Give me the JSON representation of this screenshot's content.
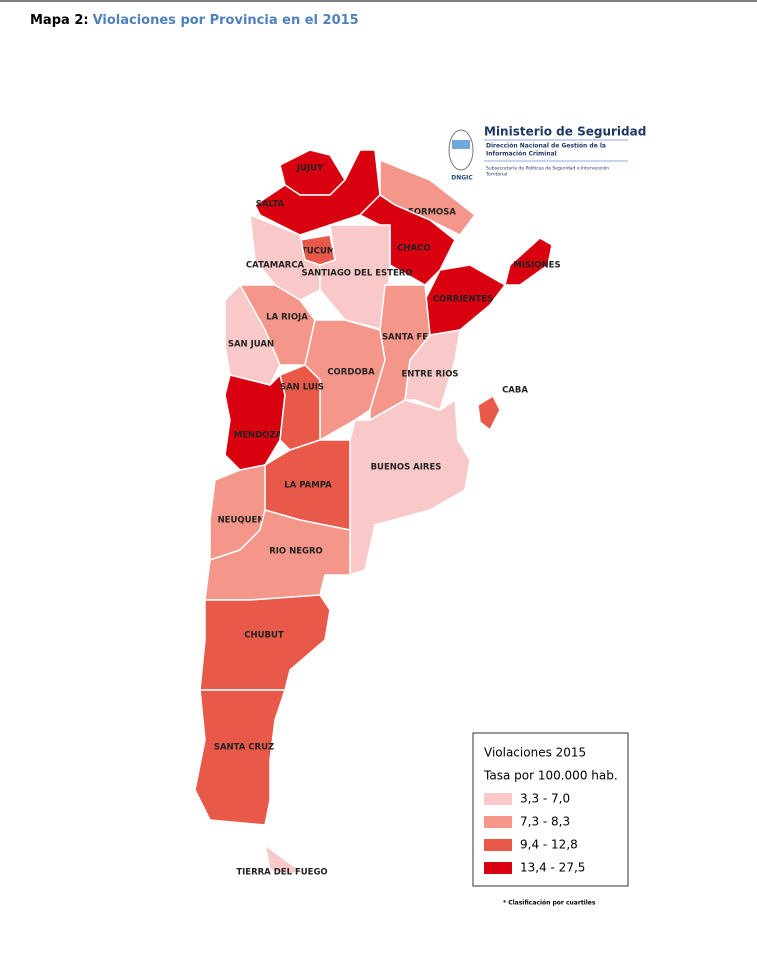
{
  "header": {
    "label": "Mapa 2:",
    "title": "Violaciones por Provincia en el 2015"
  },
  "logo": {
    "ministry": "Ministerio de Seguridad",
    "direction_1": "Dirección Nacional de Gestión de la",
    "direction_2": "Información Criminal",
    "sub_1": "Subsecretaría de Políticas de Seguridad e Intervención",
    "sub_2": "Territorial",
    "acronym": "DNGIC"
  },
  "provinces": [
    {
      "name": "JUJUY",
      "color": "#d9000f"
    },
    {
      "name": "SALTA",
      "color": "#d9000f"
    },
    {
      "name": "FORMOSA",
      "color": "#f4978a"
    },
    {
      "name": "CHACO",
      "color": "#d9000f"
    },
    {
      "name": "MISIONES",
      "color": "#d9000f"
    },
    {
      "name": "CORRIENTES",
      "color": "#d9000f"
    },
    {
      "name": "TUCUMAN",
      "color": "#e8594a"
    },
    {
      "name": "CATAMARCA",
      "color": "#f9c9c9"
    },
    {
      "name": "SANTIAGO DEL ESTERO",
      "color": "#f9c9c9"
    },
    {
      "name": "LA RIOJA",
      "color": "#f4978a"
    },
    {
      "name": "SAN JUAN",
      "color": "#f9c9c9"
    },
    {
      "name": "CORDOBA",
      "color": "#f4978a"
    },
    {
      "name": "SANTA FE",
      "color": "#f4978a"
    },
    {
      "name": "ENTRE RIOS",
      "color": "#f9c9c9"
    },
    {
      "name": "BUENOS AIRES",
      "color": "#f9c9c9"
    },
    {
      "name": "MENDOZA",
      "color": "#d9000f"
    },
    {
      "name": "SAN LUIS",
      "color": "#e8594a"
    },
    {
      "name": "LA PAMPA",
      "color": "#e8594a"
    },
    {
      "name": "NEUQUEN",
      "color": "#f4978a"
    },
    {
      "name": "RIO NEGRO",
      "color": "#f4978a"
    },
    {
      "name": "CHUBUT",
      "color": "#e8594a"
    },
    {
      "name": "SANTA CRUZ",
      "color": "#e8594a"
    },
    {
      "name": "TIERRA DEL FUEGO",
      "color": "#f9c9c9"
    },
    {
      "name": "CABA",
      "color": "#e8594a"
    }
  ],
  "legend": {
    "title": "Violaciones 2015",
    "subtitle": "Tasa por 100.000 hab.",
    "items": [
      {
        "label": "3,3 - 7,0",
        "color": "#f9c9c9"
      },
      {
        "label": "7,3 - 8,3",
        "color": "#f4978a"
      },
      {
        "label": "9,4 - 12,8",
        "color": "#e8594a"
      },
      {
        "label": "13,4 - 27,5",
        "color": "#d9000f"
      }
    ]
  },
  "note": "* Clasificación por cuartiles"
}
